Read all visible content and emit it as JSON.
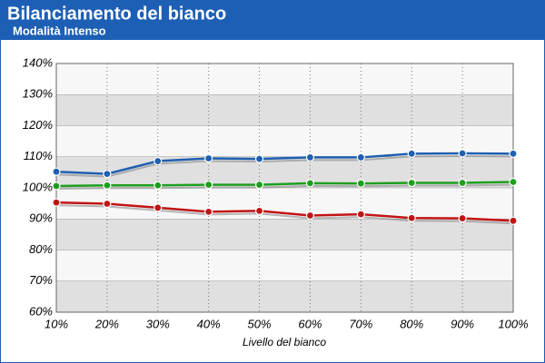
{
  "chart_data": {
    "type": "line",
    "title": "Bilanciamento del bianco",
    "subtitle": "Modalità Intenso",
    "x_label": "Livello del bianco",
    "categories": [
      "10%",
      "20%",
      "30%",
      "40%",
      "50%",
      "60%",
      "70%",
      "80%",
      "90%",
      "100%"
    ],
    "series": [
      {
        "color": "#1f5fb0",
        "values": [
          105.2,
          104.5,
          108.6,
          109.5,
          109.3,
          109.8,
          109.8,
          111.0,
          111.1,
          111.0
        ]
      },
      {
        "color": "#1e9e1e",
        "values": [
          100.6,
          100.8,
          100.8,
          101.0,
          101.0,
          101.5,
          101.4,
          101.6,
          101.6,
          101.9
        ]
      },
      {
        "color": "#c01515",
        "values": [
          95.3,
          94.9,
          93.6,
          92.3,
          92.6,
          91.1,
          91.5,
          90.3,
          90.2,
          89.4
        ]
      }
    ],
    "ylim": [
      60,
      140
    ],
    "yticks": [
      {
        "value": 60,
        "label": "60%"
      },
      {
        "value": 70,
        "label": "70%"
      },
      {
        "value": 80,
        "label": "80%"
      },
      {
        "value": 90,
        "label": "90%"
      },
      {
        "value": 100,
        "label": "100%"
      },
      {
        "value": 110,
        "label": "110%"
      },
      {
        "value": 120,
        "label": "120%"
      },
      {
        "value": 130,
        "label": "130%"
      },
      {
        "value": 140,
        "label": "140%"
      }
    ],
    "grid": true
  }
}
